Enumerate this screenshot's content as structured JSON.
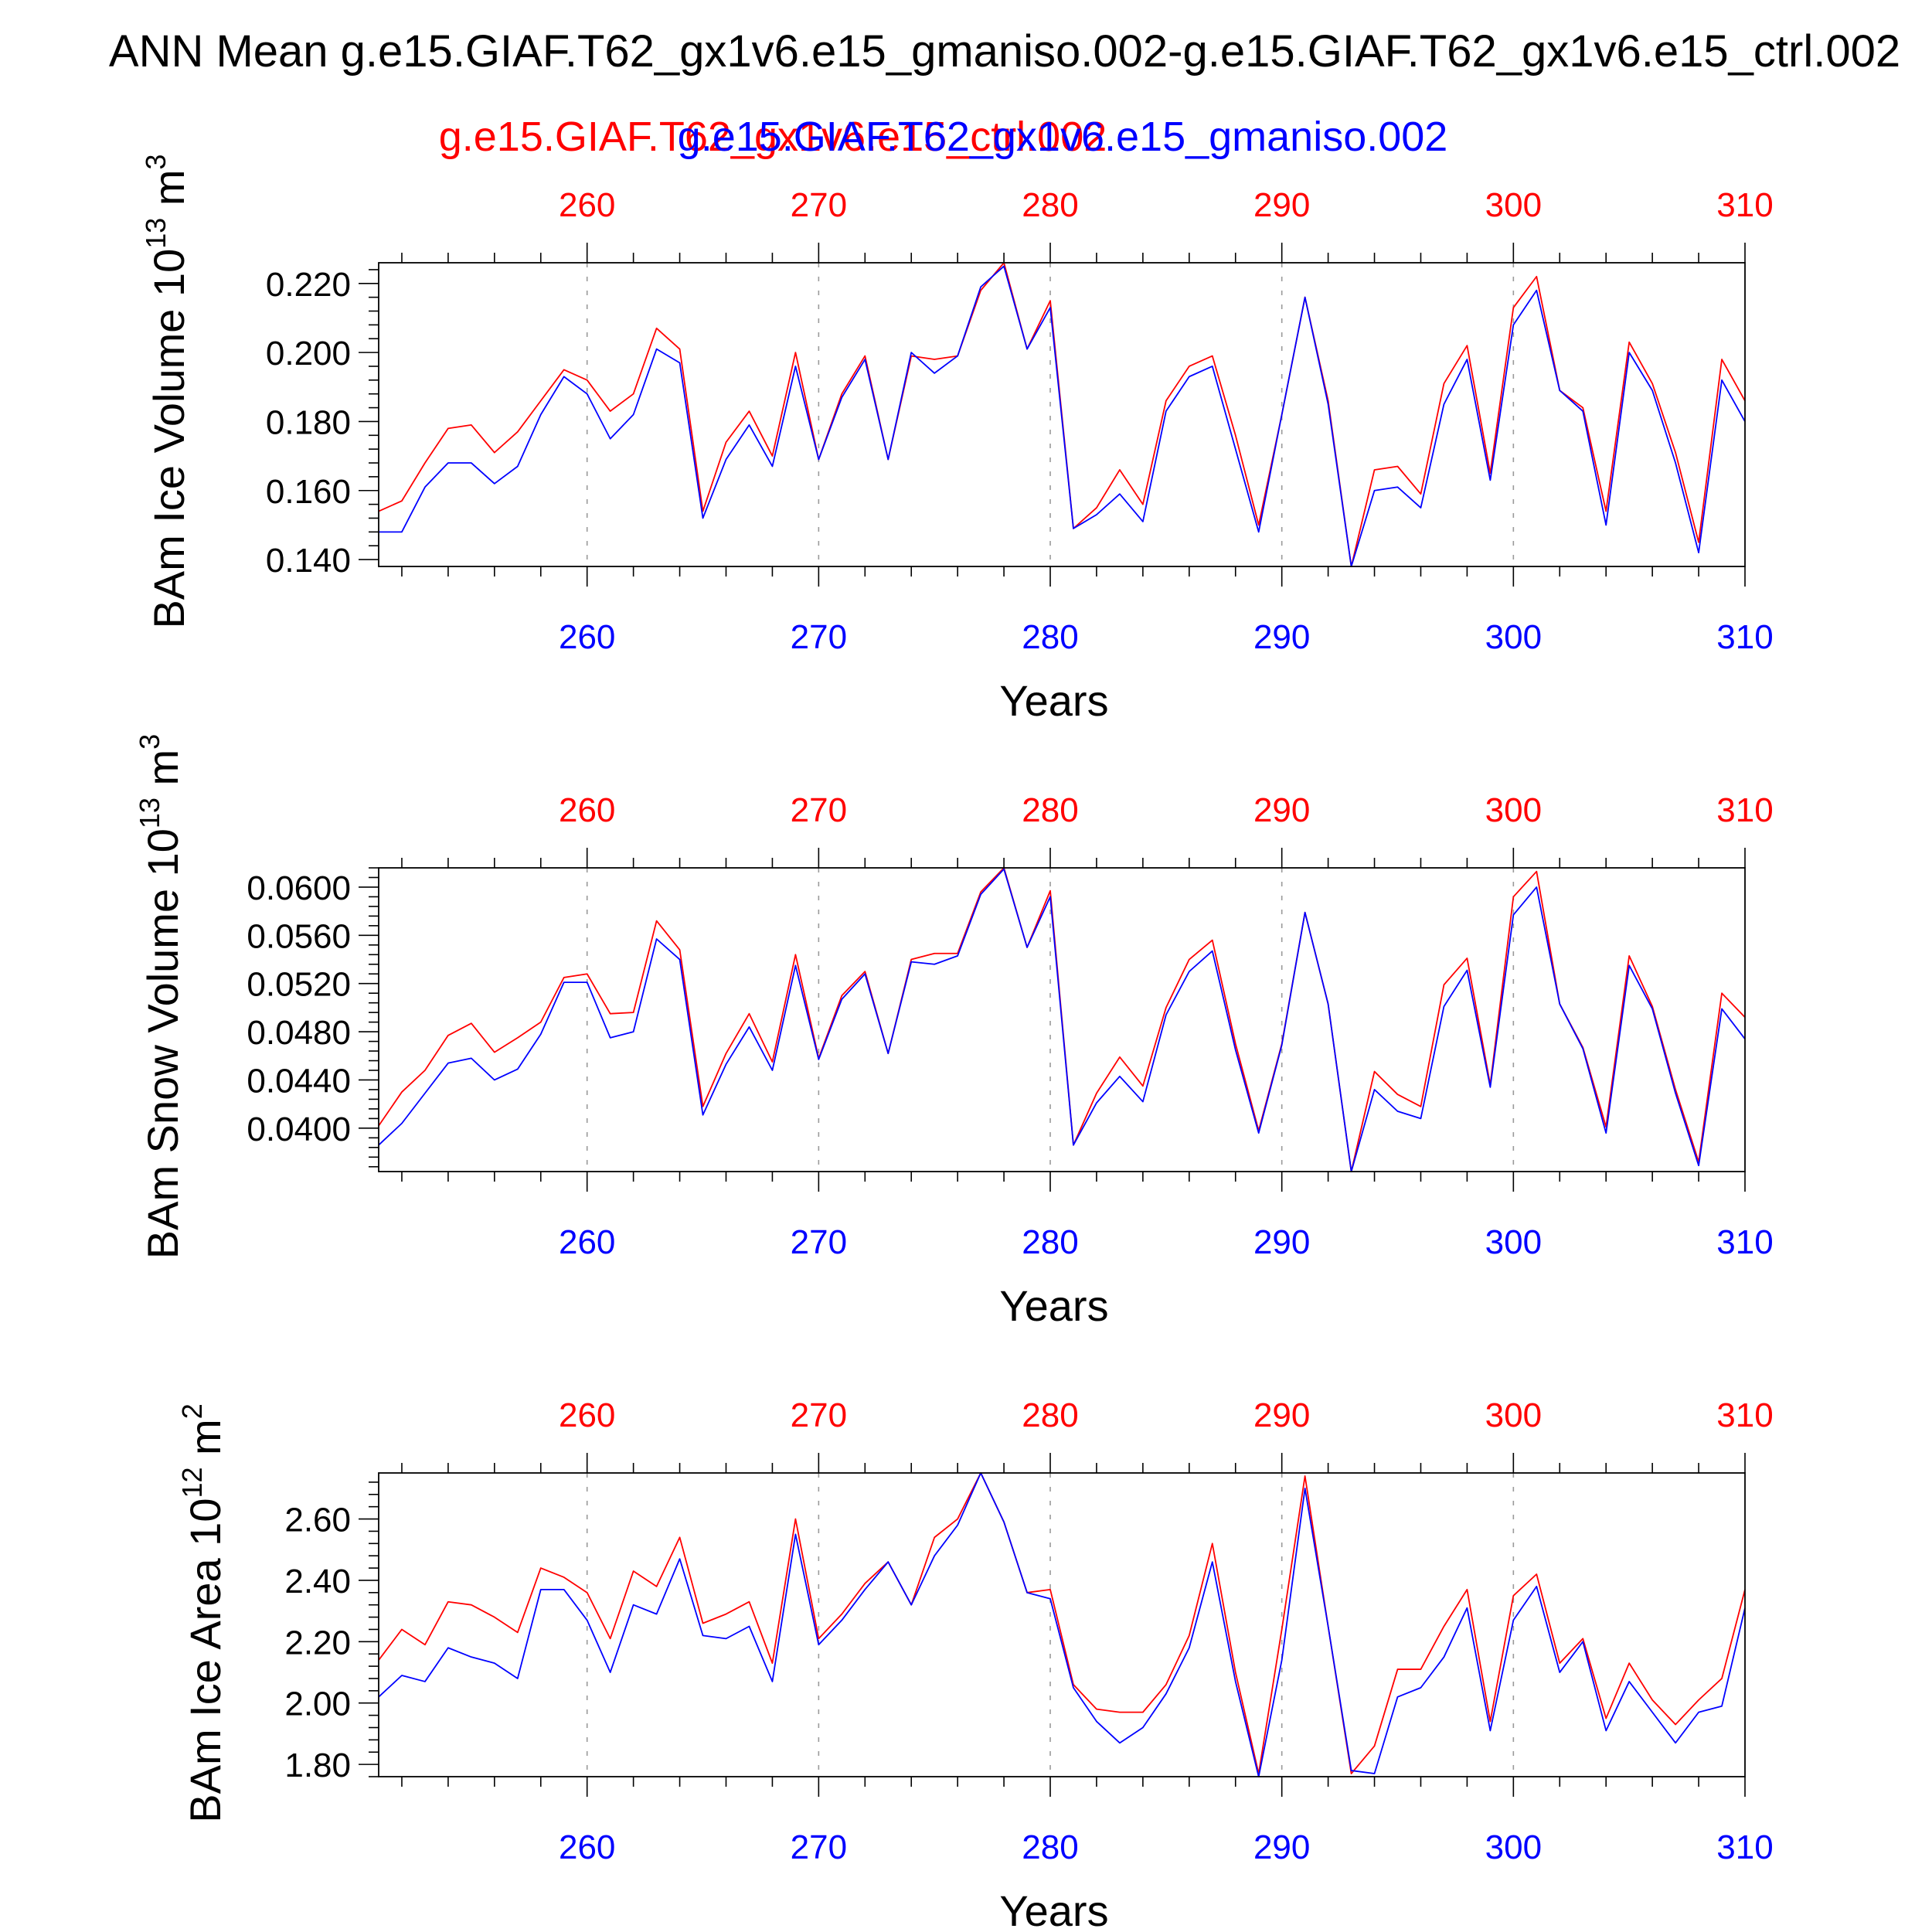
{
  "header": {
    "title": "ANN Mean g.e15.GIAF.T62_gx1v6.e15_gmaniso.002-g.e15.GIAF.T62_gx1v6.e15_ctrl.002",
    "legend_red": "g.e15.GIAF.T62_gx1v6.e15_ctrl.002",
    "legend_blue": "g.e15.GIAF.T62_gx1v6.e15_gmaniso.002"
  },
  "colors": {
    "red": "#ff0000",
    "blue": "#0000ff",
    "grid": "#9a9a9a",
    "axis": "#000000"
  },
  "chart_data": [
    {
      "type": "line",
      "title": "",
      "ylabel_main": "BAm Ice Volume 10",
      "ylabel_exp": "13",
      "ylabel_unit": " m",
      "ylabel_unit_exp": "3",
      "xlabel": "Years",
      "x_start": 251,
      "xlim": [
        251,
        310
      ],
      "ylim": [
        0.138,
        0.226
      ],
      "yticks": [
        "0.140",
        "0.160",
        "0.180",
        "0.200",
        "0.220"
      ],
      "xticks": [
        "260",
        "270",
        "280",
        "290",
        "300",
        "310"
      ],
      "grid": "vertical dashed at x ticks",
      "series": [
        {
          "name": "g.e15.GIAF.T62_gx1v6.e15_ctrl.002",
          "color": "red",
          "values": [
            0.154,
            0.157,
            0.168,
            0.178,
            0.179,
            0.171,
            0.177,
            0.186,
            0.195,
            0.192,
            0.183,
            0.188,
            0.207,
            0.201,
            0.154,
            0.174,
            0.183,
            0.17,
            0.2,
            0.169,
            0.188,
            0.199,
            0.169,
            0.199,
            0.198,
            0.199,
            0.218,
            0.226,
            0.201,
            0.215,
            0.149,
            0.155,
            0.166,
            0.156,
            0.186,
            0.196,
            0.199,
            0.176,
            0.15,
            0.182,
            0.216,
            0.186,
            0.138,
            0.166,
            0.167,
            0.159,
            0.191,
            0.202,
            0.165,
            0.213,
            0.222,
            0.189,
            0.184,
            0.154,
            0.203,
            0.191,
            0.171,
            0.145,
            0.198,
            0.186
          ]
        },
        {
          "name": "g.e15.GIAF.T62_gx1v6.e15_gmaniso.002",
          "color": "blue",
          "values": [
            0.148,
            0.148,
            0.161,
            0.168,
            0.168,
            0.162,
            0.167,
            0.182,
            0.193,
            0.188,
            0.175,
            0.182,
            0.201,
            0.197,
            0.152,
            0.169,
            0.179,
            0.167,
            0.196,
            0.169,
            0.187,
            0.198,
            0.169,
            0.2,
            0.194,
            0.199,
            0.219,
            0.225,
            0.201,
            0.213,
            0.149,
            0.153,
            0.159,
            0.151,
            0.183,
            0.193,
            0.196,
            0.172,
            0.148,
            0.182,
            0.216,
            0.185,
            0.138,
            0.16,
            0.161,
            0.155,
            0.185,
            0.198,
            0.163,
            0.208,
            0.218,
            0.189,
            0.183,
            0.15,
            0.2,
            0.189,
            0.168,
            0.142,
            0.192,
            0.18
          ]
        }
      ]
    },
    {
      "type": "line",
      "title": "",
      "ylabel_main": "BAm Snow Volume 10",
      "ylabel_exp": "13",
      "ylabel_unit": " m",
      "ylabel_unit_exp": "3",
      "xlabel": "Years",
      "x_start": 251,
      "xlim": [
        251,
        310
      ],
      "ylim": [
        0.0364,
        0.0616
      ],
      "yticks": [
        "0.0400",
        "0.0440",
        "0.0480",
        "0.0520",
        "0.0560",
        "0.0600"
      ],
      "xticks": [
        "260",
        "270",
        "280",
        "290",
        "300",
        "310"
      ],
      "grid": "vertical dashed at x ticks",
      "series": [
        {
          "name": "g.e15.GIAF.T62_gx1v6.e15_ctrl.002",
          "color": "red",
          "values": [
            0.0402,
            0.043,
            0.0448,
            0.0477,
            0.0487,
            0.0463,
            0.0475,
            0.0488,
            0.0525,
            0.0528,
            0.0495,
            0.0496,
            0.0572,
            0.0548,
            0.0418,
            0.0462,
            0.0495,
            0.0455,
            0.0544,
            0.0458,
            0.051,
            0.053,
            0.0462,
            0.054,
            0.0545,
            0.0545,
            0.0596,
            0.0616,
            0.055,
            0.0597,
            0.0386,
            0.0429,
            0.0459,
            0.0435,
            0.05,
            0.054,
            0.0556,
            0.047,
            0.0398,
            0.047,
            0.0579,
            0.0503,
            0.0364,
            0.0447,
            0.0428,
            0.0418,
            0.0519,
            0.0541,
            0.0436,
            0.0592,
            0.0613,
            0.0503,
            0.0467,
            0.0401,
            0.0543,
            0.0501,
            0.0432,
            0.0372,
            0.0512,
            0.0492
          ]
        },
        {
          "name": "g.e15.GIAF.T62_gx1v6.e15_gmaniso.002",
          "color": "blue",
          "values": [
            0.0386,
            0.0404,
            0.0429,
            0.0454,
            0.0458,
            0.044,
            0.0449,
            0.0478,
            0.0521,
            0.0521,
            0.0475,
            0.048,
            0.0557,
            0.054,
            0.0411,
            0.0453,
            0.0484,
            0.0448,
            0.0535,
            0.0457,
            0.0507,
            0.0528,
            0.0462,
            0.0538,
            0.0536,
            0.0543,
            0.0594,
            0.0615,
            0.055,
            0.0592,
            0.0386,
            0.0421,
            0.0443,
            0.0422,
            0.0494,
            0.053,
            0.0547,
            0.0465,
            0.0396,
            0.0469,
            0.0579,
            0.0503,
            0.0364,
            0.0432,
            0.0414,
            0.0408,
            0.0501,
            0.0531,
            0.0434,
            0.0577,
            0.06,
            0.0503,
            0.0466,
            0.0396,
            0.0535,
            0.0499,
            0.0429,
            0.0369,
            0.0499,
            0.0474
          ]
        }
      ]
    },
    {
      "type": "line",
      "title": "",
      "ylabel_main": "BAm Ice Area 10",
      "ylabel_exp": "12",
      "ylabel_unit": " m",
      "ylabel_unit_exp": "2",
      "xlabel": "Years",
      "x_start": 251,
      "xlim": [
        251,
        310
      ],
      "ylim": [
        1.76,
        2.75
      ],
      "yticks": [
        "1.80",
        "2.00",
        "2.20",
        "2.40",
        "2.60"
      ],
      "xticks": [
        "260",
        "270",
        "280",
        "290",
        "300",
        "310"
      ],
      "grid": "vertical dashed at x ticks",
      "series": [
        {
          "name": "g.e15.GIAF.T62_gx1v6.e15_ctrl.002",
          "color": "red",
          "values": [
            2.14,
            2.24,
            2.19,
            2.33,
            2.32,
            2.28,
            2.23,
            2.44,
            2.41,
            2.36,
            2.21,
            2.43,
            2.38,
            2.54,
            2.26,
            2.29,
            2.33,
            2.13,
            2.6,
            2.21,
            2.29,
            2.39,
            2.46,
            2.32,
            2.54,
            2.6,
            2.75,
            2.59,
            2.36,
            2.37,
            2.06,
            1.98,
            1.97,
            1.97,
            2.06,
            2.22,
            2.52,
            2.1,
            1.77,
            2.24,
            2.74,
            2.25,
            1.77,
            1.86,
            2.11,
            2.11,
            2.25,
            2.37,
            1.94,
            2.35,
            2.42,
            2.13,
            2.21,
            1.95,
            2.13,
            2.01,
            1.93,
            2.01,
            2.08,
            2.37
          ]
        },
        {
          "name": "g.e15.GIAF.T62_gx1v6.e15_gmaniso.002",
          "color": "blue",
          "values": [
            2.02,
            2.09,
            2.07,
            2.18,
            2.15,
            2.13,
            2.08,
            2.37,
            2.37,
            2.27,
            2.1,
            2.32,
            2.29,
            2.47,
            2.22,
            2.21,
            2.25,
            2.07,
            2.55,
            2.19,
            2.27,
            2.37,
            2.46,
            2.32,
            2.48,
            2.58,
            2.75,
            2.59,
            2.36,
            2.34,
            2.05,
            1.94,
            1.87,
            1.92,
            2.03,
            2.18,
            2.46,
            2.07,
            1.76,
            2.14,
            2.7,
            2.25,
            1.78,
            1.77,
            2.02,
            2.05,
            2.15,
            2.31,
            1.91,
            2.27,
            2.38,
            2.1,
            2.2,
            1.91,
            2.07,
            1.97,
            1.87,
            1.97,
            1.99,
            2.31
          ]
        }
      ]
    }
  ]
}
